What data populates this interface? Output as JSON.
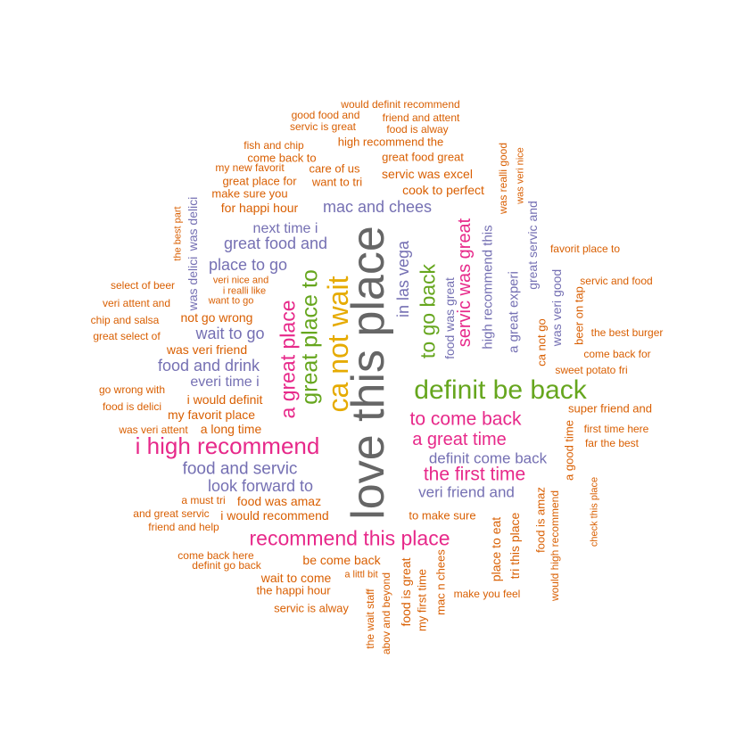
{
  "colors": {
    "orange": "#D95F02",
    "purple": "#7570B3",
    "pink": "#E7298A",
    "green": "#66A61E",
    "gold": "#E6AB02",
    "gray": "#666666"
  },
  "words": [
    {
      "text": "love this place",
      "color": "gray"
    },
    {
      "text": "ca not wait",
      "color": "gold"
    },
    {
      "text": "definit be back",
      "color": "green"
    },
    {
      "text": "i high recommend",
      "color": "pink"
    },
    {
      "text": "great place to",
      "color": "green"
    },
    {
      "text": "a great place",
      "color": "pink"
    },
    {
      "text": "recommend this place",
      "color": "pink"
    },
    {
      "text": "to go back",
      "color": "green"
    },
    {
      "text": "to come back",
      "color": "pink"
    },
    {
      "text": "the first time",
      "color": "pink"
    },
    {
      "text": "a great time",
      "color": "pink"
    },
    {
      "text": "servic was great",
      "color": "pink"
    },
    {
      "text": "in las vega",
      "color": "purple"
    },
    {
      "text": "mac and chees",
      "color": "purple"
    },
    {
      "text": "great food and",
      "color": "purple"
    },
    {
      "text": "place to go",
      "color": "purple"
    },
    {
      "text": "next time i",
      "color": "purple"
    },
    {
      "text": "wait to go",
      "color": "purple"
    },
    {
      "text": "food and drink",
      "color": "purple"
    },
    {
      "text": "everi time i",
      "color": "purple"
    },
    {
      "text": "food and servic",
      "color": "purple"
    },
    {
      "text": "look forward to",
      "color": "purple"
    },
    {
      "text": "definit come back",
      "color": "purple"
    },
    {
      "text": "veri friend and",
      "color": "purple"
    },
    {
      "text": "food was great",
      "color": "purple"
    },
    {
      "text": "high recommend this",
      "color": "purple"
    },
    {
      "text": "a great experi",
      "color": "purple"
    },
    {
      "text": "great servic and",
      "color": "purple"
    },
    {
      "text": "was veri good",
      "color": "purple"
    },
    {
      "text": "was delici",
      "color": "purple"
    },
    {
      "text": "would definit recommend",
      "color": "orange"
    },
    {
      "text": "good food and",
      "color": "orange"
    },
    {
      "text": "friend and attent",
      "color": "orange"
    },
    {
      "text": "servic is great",
      "color": "orange"
    },
    {
      "text": "food is alway",
      "color": "orange"
    },
    {
      "text": "high recommend the",
      "color": "orange"
    },
    {
      "text": "fish and chip",
      "color": "orange"
    },
    {
      "text": "great food great",
      "color": "orange"
    },
    {
      "text": "come back to",
      "color": "orange"
    },
    {
      "text": "my new favorit",
      "color": "orange"
    },
    {
      "text": "care of us",
      "color": "orange"
    },
    {
      "text": "servic was excel",
      "color": "orange"
    },
    {
      "text": "great place for",
      "color": "orange"
    },
    {
      "text": "want to tri",
      "color": "orange"
    },
    {
      "text": "make sure you",
      "color": "orange"
    },
    {
      "text": "cook to perfect",
      "color": "orange"
    },
    {
      "text": "for happi hour",
      "color": "orange"
    },
    {
      "text": "the best part",
      "color": "orange"
    },
    {
      "text": "was realli good",
      "color": "orange"
    },
    {
      "text": "was veri nice",
      "color": "orange"
    },
    {
      "text": "favorit place to",
      "color": "orange"
    },
    {
      "text": "select of beer",
      "color": "orange"
    },
    {
      "text": "veri nice and",
      "color": "orange"
    },
    {
      "text": "i realli like",
      "color": "orange"
    },
    {
      "text": "want to go",
      "color": "orange"
    },
    {
      "text": "servic and food",
      "color": "orange"
    },
    {
      "text": "veri attent and",
      "color": "orange"
    },
    {
      "text": "not go wrong",
      "color": "orange"
    },
    {
      "text": "chip and salsa",
      "color": "orange"
    },
    {
      "text": "great select of",
      "color": "orange"
    },
    {
      "text": "was veri friend",
      "color": "orange"
    },
    {
      "text": "ca not go",
      "color": "orange"
    },
    {
      "text": "beer on tap",
      "color": "orange"
    },
    {
      "text": "the best burger",
      "color": "orange"
    },
    {
      "text": "come back for",
      "color": "orange"
    },
    {
      "text": "sweet potato fri",
      "color": "orange"
    },
    {
      "text": "go wrong with",
      "color": "orange"
    },
    {
      "text": "i would definit",
      "color": "orange"
    },
    {
      "text": "food is delici",
      "color": "orange"
    },
    {
      "text": "my favorit place",
      "color": "orange"
    },
    {
      "text": "super friend and",
      "color": "orange"
    },
    {
      "text": "was veri attent",
      "color": "orange"
    },
    {
      "text": "a long time",
      "color": "orange"
    },
    {
      "text": "first time here",
      "color": "orange"
    },
    {
      "text": "far the best",
      "color": "orange"
    },
    {
      "text": "a good time",
      "color": "orange"
    },
    {
      "text": "check this place",
      "color": "orange"
    },
    {
      "text": "a must tri",
      "color": "orange"
    },
    {
      "text": "food was amaz",
      "color": "orange"
    },
    {
      "text": "and great servic",
      "color": "orange"
    },
    {
      "text": "i would recommend",
      "color": "orange"
    },
    {
      "text": "to make sure",
      "color": "orange"
    },
    {
      "text": "friend and help",
      "color": "orange"
    },
    {
      "text": "place to eat",
      "color": "orange"
    },
    {
      "text": "tri this place",
      "color": "orange"
    },
    {
      "text": "food is amaz",
      "color": "orange"
    },
    {
      "text": "would high recommend",
      "color": "orange"
    },
    {
      "text": "come back here",
      "color": "orange"
    },
    {
      "text": "definit go back",
      "color": "orange"
    },
    {
      "text": "be come back",
      "color": "orange"
    },
    {
      "text": "wait to come",
      "color": "orange"
    },
    {
      "text": "a littl bit",
      "color": "orange"
    },
    {
      "text": "the happi hour",
      "color": "orange"
    },
    {
      "text": "servic is alway",
      "color": "orange"
    },
    {
      "text": "the wait staff",
      "color": "orange"
    },
    {
      "text": "abov and beyond",
      "color": "orange"
    },
    {
      "text": "food is great",
      "color": "orange"
    },
    {
      "text": "my first time",
      "color": "orange"
    },
    {
      "text": "mac n chees",
      "color": "orange"
    },
    {
      "text": "make you feel",
      "color": "orange"
    }
  ]
}
